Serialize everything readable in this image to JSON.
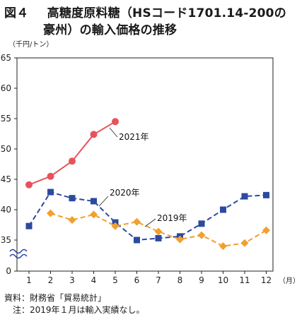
{
  "header": {
    "fig_label": "図４",
    "title_line1": "高糖度原料糖（HSコード1701.14-200の",
    "title_line2": "豪州）の輸入価格の推移"
  },
  "chart_data": {
    "type": "line",
    "y_unit_label": "（千円/トン）",
    "x_unit_label": "（月）",
    "categories": [
      "1",
      "2",
      "3",
      "4",
      "5",
      "6",
      "7",
      "8",
      "9",
      "10",
      "11",
      "12"
    ],
    "y_ticks": [
      0,
      35,
      40,
      45,
      50,
      55,
      60,
      65
    ],
    "ylim": [
      35,
      65
    ],
    "axis_break": true,
    "grid": false,
    "series": [
      {
        "name": "2021年",
        "color": "#e8525a",
        "marker": "circle",
        "dash": "solid",
        "values": [
          44.1,
          45.5,
          48.0,
          52.4,
          54.5,
          null,
          null,
          null,
          null,
          null,
          null,
          null
        ]
      },
      {
        "name": "2020年",
        "color": "#2b4aa0",
        "marker": "square",
        "dash": "dashed",
        "values": [
          37.3,
          42.9,
          41.9,
          41.4,
          37.9,
          35.0,
          35.3,
          35.6,
          37.7,
          40.0,
          42.2,
          42.4
        ]
      },
      {
        "name": "2019年",
        "color": "#f0a030",
        "marker": "diamond",
        "dash": "dashed",
        "values": [
          null,
          39.4,
          38.3,
          39.2,
          37.3,
          38.0,
          36.4,
          35.1,
          35.8,
          34.0,
          34.5,
          36.6
        ]
      }
    ]
  },
  "footer": {
    "source": "資料：財務省「貿易統計」",
    "note": "注：2019年１月は輸入実績なし。"
  }
}
